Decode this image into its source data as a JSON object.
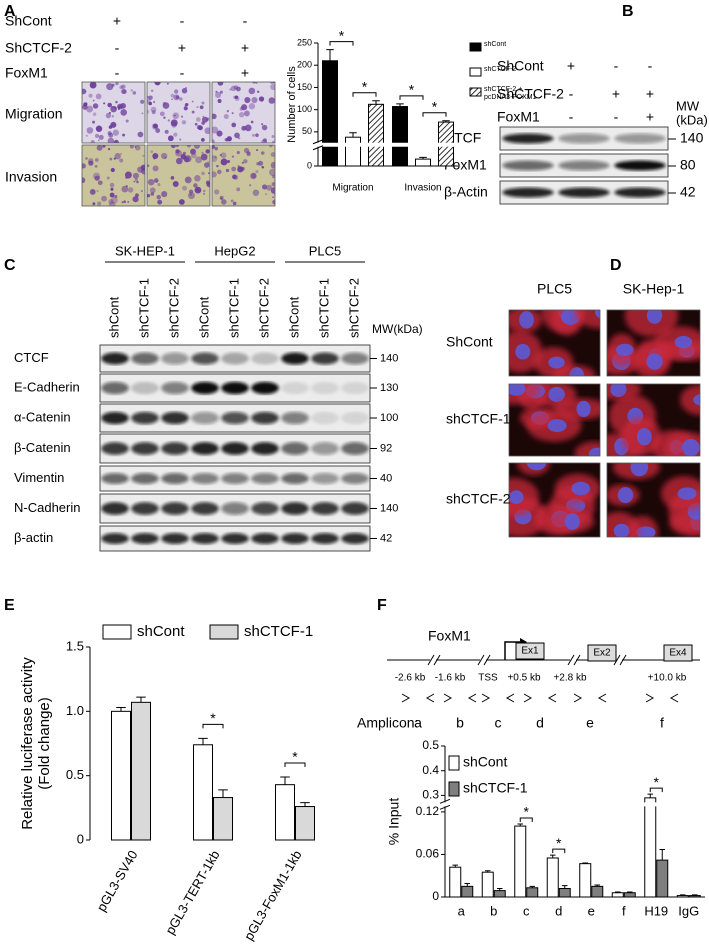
{
  "panel_labels": {
    "a": "A",
    "b": "B",
    "c": "C",
    "d": "D",
    "e": "E",
    "f": "F"
  },
  "panel_a": {
    "conditions": [
      {
        "name": "ShCont",
        "marks": [
          "+",
          "-",
          "-"
        ]
      },
      {
        "name": "ShCTCF-2",
        "marks": [
          "-",
          "+",
          "+"
        ]
      },
      {
        "name": "FoxM1",
        "marks": [
          "-",
          "-",
          "+"
        ]
      }
    ],
    "rows": [
      "Migration",
      "Invasion"
    ]
  },
  "panel_b": {
    "conditions": [
      {
        "name": "ShCont",
        "marks": [
          "+",
          "-",
          "-"
        ]
      },
      {
        "name": "ShCTCF-2",
        "marks": [
          "-",
          "+",
          "+"
        ]
      },
      {
        "name": "FoxM1",
        "marks": [
          "-",
          "-",
          "+"
        ]
      }
    ],
    "mw_header": [
      "MW",
      "(kDa)"
    ],
    "bands": [
      {
        "name": "CTCF",
        "mw": 140
      },
      {
        "name": "FoxM1",
        "mw": 80
      },
      {
        "name": "β-Actin",
        "mw": 42
      }
    ]
  },
  "panel_c": {
    "groups": [
      "SK-HEP-1",
      "HepG2",
      "PLC5"
    ],
    "lanes": [
      "shCont",
      "shCTCF-1",
      "shCTCF-2"
    ],
    "mw_header": "MW(kDa)",
    "bands": [
      {
        "name": "CTCF",
        "mw": 140
      },
      {
        "name": "E-Cadherin",
        "mw": 130
      },
      {
        "name": "α-Catenin",
        "mw": 100
      },
      {
        "name": "β-Catenin",
        "mw": 92
      },
      {
        "name": "Vimentin",
        "mw": 40
      },
      {
        "name": "N-Cadherin",
        "mw": 140
      },
      {
        "name": "β-actin",
        "mw": 42
      }
    ]
  },
  "panel_d": {
    "columns": [
      "PLC5",
      "SK-Hep-1"
    ],
    "rows": [
      "ShCont",
      "shCTCF-1",
      "shCTCF-2"
    ]
  },
  "panel_f_map": {
    "gene": "FoxM1",
    "exons": [
      "Ex1",
      "Ex2",
      "Ex4"
    ],
    "positions": [
      "-2.6 kb",
      "-1.6 kb",
      "TSS",
      "+0.5 kb",
      "+2.8 kb",
      "+10.0 kb"
    ],
    "amplicon_label": "Amplicon:",
    "amplicons": [
      "a",
      "b",
      "c",
      "d",
      "e",
      "f"
    ]
  },
  "chart_data": [
    {
      "type": "bar",
      "ylabel": "Number of cells",
      "categories": [
        "Migration",
        "Invasion"
      ],
      "series": [
        {
          "name": "shCont",
          "color": "#000000",
          "values": [
            210,
            107
          ],
          "errors": [
            25,
            6
          ]
        },
        {
          "name": "shCTCF-2",
          "color": "#ffffff",
          "values": [
            38,
            4
          ],
          "errors": [
            10,
            1
          ]
        },
        {
          "name": "shCTCF-2 + pcDNA3-FOXM1",
          "pattern": "hatch",
          "values": [
            112,
            72
          ],
          "errors": [
            8,
            3
          ]
        }
      ],
      "ylim": [
        0,
        250
      ],
      "ybreak": [
        10,
        30
      ],
      "yticks": [
        0,
        50,
        100,
        150,
        200,
        250
      ],
      "annotations": [
        {
          "x": "Migration",
          "between": [
            "shCont",
            "shCTCF-2"
          ],
          "text": "*"
        },
        {
          "x": "Migration",
          "between": [
            "shCTCF-2",
            "shCTCF-2 + pcDNA3-FOXM1"
          ],
          "text": "*"
        },
        {
          "x": "Invasion",
          "between": [
            "shCont",
            "shCTCF-2"
          ],
          "text": "*"
        },
        {
          "x": "Invasion",
          "between": [
            "shCTCF-2",
            "shCTCF-2 + pcDNA3-FOXM1"
          ],
          "text": "*"
        }
      ]
    },
    {
      "type": "bar",
      "ylabel": [
        "Relative luciferase activity",
        "(Fold change)"
      ],
      "categories": [
        "pGL3-SV40",
        "pGL3-TERT-1kb",
        "pGL3-FoxM1-1kb"
      ],
      "series": [
        {
          "name": "shCont",
          "color": "#ffffff",
          "values": [
            1.0,
            0.74,
            0.43
          ],
          "errors": [
            0.03,
            0.05,
            0.06
          ]
        },
        {
          "name": "shCTCF-1",
          "color": "#d9d9d9",
          "values": [
            1.07,
            0.33,
            0.26
          ],
          "errors": [
            0.04,
            0.06,
            0.03
          ]
        }
      ],
      "ylim": [
        0,
        1.5
      ],
      "yticks": [
        0,
        0.5,
        {
          "value": 1,
          "label": "1.0"
        },
        1.5
      ],
      "annotations": [
        {
          "x": "pGL3-TERT-1kb",
          "between": [
            "shCont",
            "shCTCF-1"
          ],
          "text": "*"
        },
        {
          "x": "pGL3-FoxM1-1kb",
          "between": [
            "shCont",
            "shCTCF-1"
          ],
          "text": "*"
        }
      ]
    },
    {
      "type": "bar",
      "ylabel": "% Input",
      "categories": [
        "a",
        "b",
        "c",
        "d",
        "e",
        "f",
        "H19",
        "IgG"
      ],
      "series": [
        {
          "name": "shCont",
          "color": "#ffffff",
          "values": [
            0.042,
            0.035,
            0.1,
            0.055,
            0.047,
            0.006,
            0.29,
            0.002
          ],
          "errors": [
            0.003,
            0.002,
            0.003,
            0.004,
            0.001,
            0.001,
            0.015,
            0.001
          ]
        },
        {
          "name": "shCTCF-1",
          "color": "#7f7f7f",
          "values": [
            0.015,
            0.009,
            0.013,
            0.012,
            0.015,
            0.006,
            0.052,
            0.002
          ],
          "errors": [
            0.004,
            0.003,
            0.002,
            0.004,
            0.002,
            0.001,
            0.015,
            0.001
          ]
        }
      ],
      "ylim": [
        0,
        0.5
      ],
      "ybreak": [
        0.125,
        0.28
      ],
      "yticks": [
        0,
        0.06,
        0.12,
        0.3,
        0.4,
        0.5
      ],
      "annotations": [
        {
          "x": "c",
          "between": [
            "shCont",
            "shCTCF-1"
          ],
          "text": "*"
        },
        {
          "x": "d",
          "between": [
            "shCont",
            "shCTCF-1"
          ],
          "text": "*"
        },
        {
          "x": "H19",
          "between": [
            "shCont",
            "shCTCF-1"
          ],
          "text": "*"
        }
      ]
    }
  ]
}
